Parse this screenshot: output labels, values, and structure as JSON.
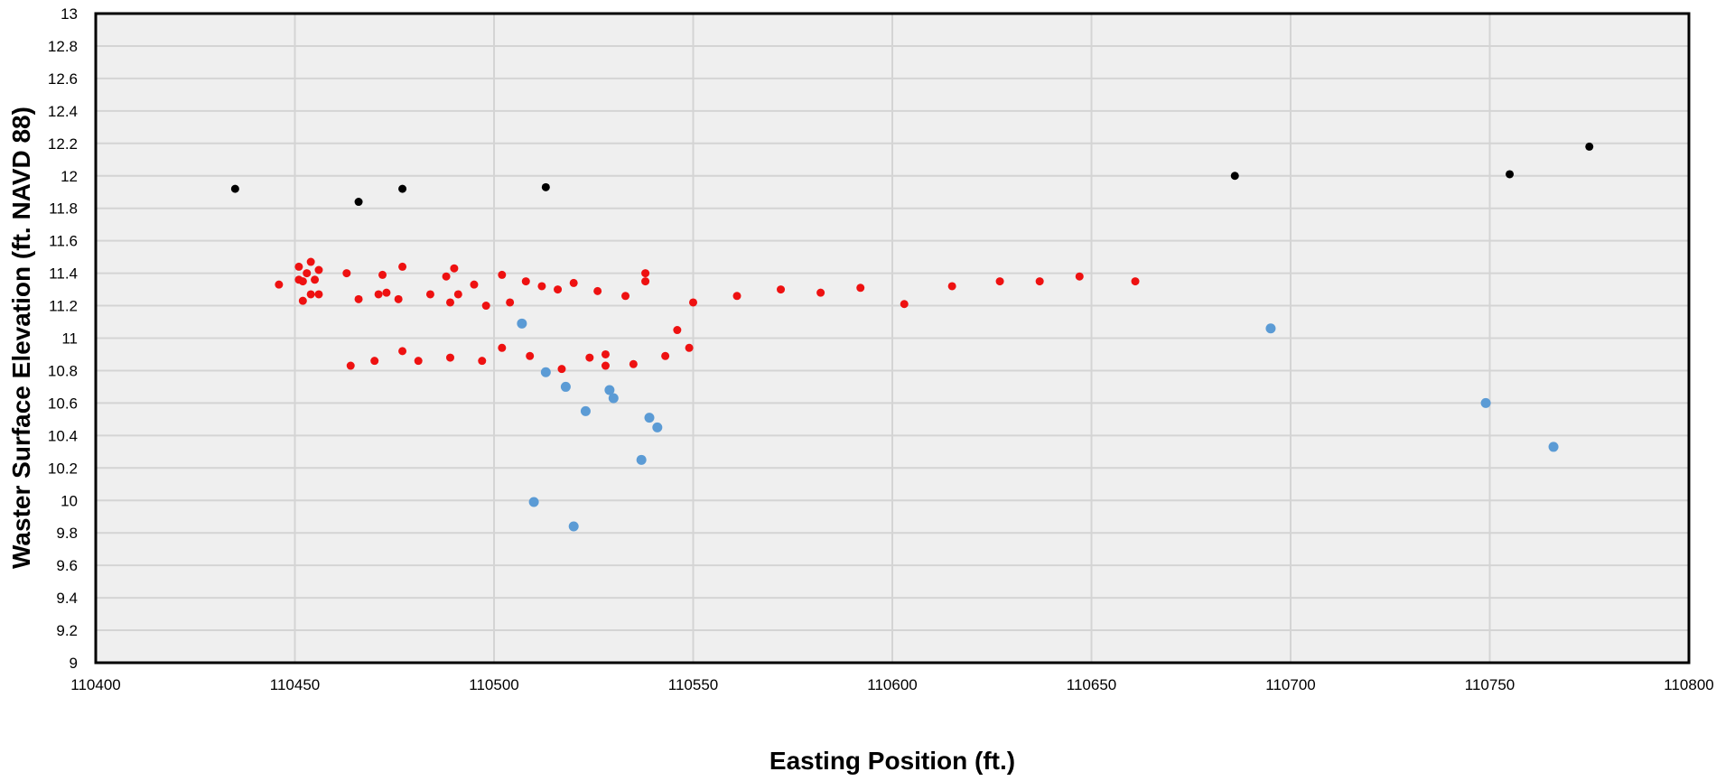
{
  "chart_data": {
    "type": "scatter",
    "title": "",
    "xlabel": "Easting Position (ft.)",
    "ylabel": "Waster Surface Elevation (ft. NAVD 88)",
    "xlim": [
      110400,
      110800
    ],
    "ylim": [
      9,
      13
    ],
    "x_ticks": [
      "110400",
      "110450",
      "110500",
      "110550",
      "110600",
      "110650",
      "110700",
      "110750",
      "110800"
    ],
    "y_ticks": [
      "9",
      "9.2",
      "9.4",
      "9.6",
      "9.8",
      "10",
      "10.2",
      "10.4",
      "10.6",
      "10.8",
      "11",
      "11.2",
      "11.4",
      "11.6",
      "11.8",
      "12",
      "12.2",
      "12.4",
      "12.6",
      "12.8",
      "13"
    ],
    "grid": true,
    "legend": "none",
    "plot_background": "#efefef",
    "series": [
      {
        "color": "#000000",
        "points": [
          [
            110435,
            11.92
          ],
          [
            110466,
            11.84
          ],
          [
            110477,
            11.92
          ],
          [
            110513,
            11.93
          ],
          [
            110686,
            12.0
          ],
          [
            110755,
            12.01
          ],
          [
            110775,
            12.18
          ]
        ]
      },
      {
        "color": "#ee1111",
        "points": [
          [
            110446,
            11.33
          ],
          [
            110451,
            11.44
          ],
          [
            110451,
            11.36
          ],
          [
            110452,
            11.35
          ],
          [
            110452,
            11.23
          ],
          [
            110453,
            11.4
          ],
          [
            110454,
            11.27
          ],
          [
            110454,
            11.47
          ],
          [
            110455,
            11.36
          ],
          [
            110456,
            11.42
          ],
          [
            110456,
            11.27
          ],
          [
            110463,
            11.4
          ],
          [
            110464,
            10.83
          ],
          [
            110466,
            11.24
          ],
          [
            110470,
            10.86
          ],
          [
            110471,
            11.27
          ],
          [
            110472,
            11.39
          ],
          [
            110473,
            11.28
          ],
          [
            110476,
            11.24
          ],
          [
            110477,
            10.92
          ],
          [
            110477,
            11.44
          ],
          [
            110481,
            10.86
          ],
          [
            110484,
            11.27
          ],
          [
            110488,
            11.38
          ],
          [
            110489,
            11.22
          ],
          [
            110489,
            10.88
          ],
          [
            110490,
            11.43
          ],
          [
            110491,
            11.27
          ],
          [
            110495,
            11.33
          ],
          [
            110497,
            10.86
          ],
          [
            110498,
            11.2
          ],
          [
            110502,
            11.39
          ],
          [
            110502,
            10.94
          ],
          [
            110504,
            11.22
          ],
          [
            110508,
            11.35
          ],
          [
            110509,
            10.89
          ],
          [
            110512,
            11.32
          ],
          [
            110516,
            11.3
          ],
          [
            110517,
            10.81
          ],
          [
            110520,
            11.34
          ],
          [
            110524,
            10.88
          ],
          [
            110526,
            11.29
          ],
          [
            110528,
            10.83
          ],
          [
            110528,
            10.9
          ],
          [
            110533,
            11.26
          ],
          [
            110535,
            10.84
          ],
          [
            110538,
            11.4
          ],
          [
            110538,
            11.35
          ],
          [
            110543,
            10.89
          ],
          [
            110546,
            11.05
          ],
          [
            110549,
            10.94
          ],
          [
            110550,
            11.22
          ],
          [
            110561,
            11.26
          ],
          [
            110572,
            11.3
          ],
          [
            110582,
            11.28
          ],
          [
            110592,
            11.31
          ],
          [
            110603,
            11.21
          ],
          [
            110615,
            11.32
          ],
          [
            110627,
            11.35
          ],
          [
            110637,
            11.35
          ],
          [
            110647,
            11.38
          ],
          [
            110661,
            11.35
          ]
        ]
      },
      {
        "color": "#5b9bd5",
        "points": [
          [
            110507,
            11.09
          ],
          [
            110510,
            9.99
          ],
          [
            110513,
            10.79
          ],
          [
            110518,
            10.7
          ],
          [
            110520,
            9.84
          ],
          [
            110523,
            10.55
          ],
          [
            110529,
            10.68
          ],
          [
            110530,
            10.63
          ],
          [
            110537,
            10.25
          ],
          [
            110539,
            10.51
          ],
          [
            110541,
            10.45
          ],
          [
            110695,
            11.06
          ],
          [
            110749,
            10.6
          ],
          [
            110766,
            10.33
          ]
        ]
      }
    ]
  }
}
